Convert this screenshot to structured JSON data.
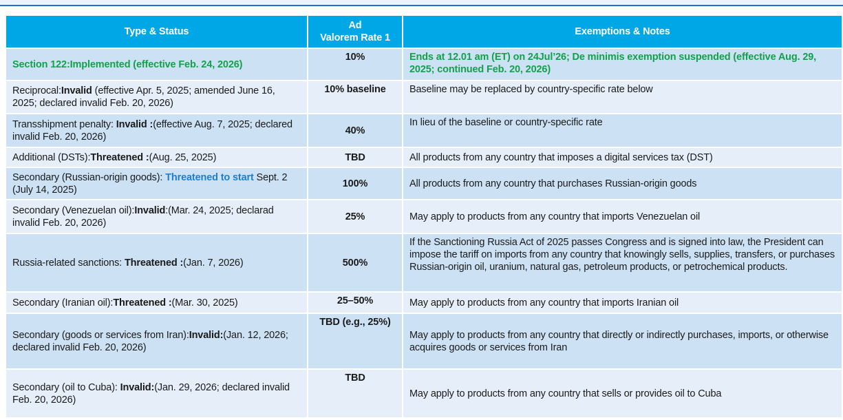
{
  "colors": {
    "header_bg": "#00a7e6",
    "row_dark": "#cde1f4",
    "row_light": "#e6eff9",
    "implemented_green": "#12a14a",
    "threat_blue": "#1a7fd0",
    "title_rule": "#1f6fd6"
  },
  "table": {
    "headers": [
      "Type & Status",
      "Ad Valorem Rate 1",
      "Exemptions & Notes"
    ],
    "header_rate_lines": [
      "Ad",
      "Valorem Rate 1"
    ],
    "rows": [
      {
        "type": [
          {
            "t": "Section 122:Implemented (effective Feb. 24, 2026)",
            "s": "green"
          }
        ],
        "rate": "10%",
        "notes": [
          {
            "t": "Ends at 12.01 am (ET) on 24Jul’26; De minimis exemption suspended (effective Aug. 29, 2025; continued Feb. 20, 2026)",
            "s": "green"
          }
        ]
      },
      {
        "type": [
          {
            "t": "Reciprocal:",
            "s": ""
          },
          {
            "t": "Invalid",
            "s": "b"
          },
          {
            "t": " (effective Apr. 5, 2025; amended June 16, 2025; declared invalid Feb. 20, 2026)",
            "s": ""
          }
        ],
        "rate": "10% baseline",
        "notes": [
          {
            "t": "Baseline may be replaced by country-specific rate below",
            "s": ""
          }
        ]
      },
      {
        "type": [
          {
            "t": "Transshipment penalty: ",
            "s": ""
          },
          {
            "t": "Invalid :",
            "s": "b"
          },
          {
            "t": "(effective Aug. 7, 2025; declared invalid Feb. 20, 2026)",
            "s": ""
          }
        ],
        "rate": "40%",
        "notes": [
          {
            "t": "In lieu of the baseline or country-specific rate",
            "s": ""
          }
        ]
      },
      {
        "type": [
          {
            "t": "Additional (DSTs):",
            "s": ""
          },
          {
            "t": "Threatened :",
            "s": "b"
          },
          {
            "t": "(Aug. 25, 2025)",
            "s": ""
          }
        ],
        "rate": "TBD",
        "notes": [
          {
            "t": "All products from any country that imposes a digital services tax (DST)",
            "s": ""
          }
        ]
      },
      {
        "type": [
          {
            "t": "Secondary (Russian-origin goods): ",
            "s": ""
          },
          {
            "t": "Threatened to start",
            "s": "blue"
          },
          {
            "t": " Sept. 2 (July 14, 2025)",
            "s": ""
          }
        ],
        "rate": "100%",
        "notes": [
          {
            "t": "All products from any country that purchases Russian-origin goods",
            "s": ""
          }
        ]
      },
      {
        "type": [
          {
            "t": "Secondary (Venezuelan oil):",
            "s": ""
          },
          {
            "t": "Invalid",
            "s": "b"
          },
          {
            "t": ":(Mar. 24, 2025; declarad invalid Feb. 20, 2026)",
            "s": ""
          }
        ],
        "rate": "25%",
        "notes": [
          {
            "t": "May apply to products from any country that imports Venezuelan oil",
            "s": ""
          }
        ]
      },
      {
        "type": [
          {
            "t": "Russia-related sanctions: ",
            "s": ""
          },
          {
            "t": "Threatened :",
            "s": "b"
          },
          {
            "t": "(Jan. 7, 2026)",
            "s": ""
          }
        ],
        "rate": "500%",
        "notes": [
          {
            "t": "If the Sanctioning Russia Act of 2025 passes Congress and is signed into law, the President can impose the tariff on imports from any country that knowingly sells, supplies, transfers, or purchases Russian-origin oil, uranium, natural gas, petroleum products, or petrochemical products.",
            "s": ""
          }
        ]
      },
      {
        "type": [
          {
            "t": "Secondary (Iranian oil):",
            "s": ""
          },
          {
            "t": "Threatened :",
            "s": "b"
          },
          {
            "t": "(Mar. 30, 2025)",
            "s": ""
          }
        ],
        "rate": "25–50%",
        "notes": [
          {
            "t": "May apply to products from any country that imports Iranian oil",
            "s": ""
          }
        ]
      },
      {
        "type": [
          {
            "t": "Secondary (goods or services from Iran):",
            "s": ""
          },
          {
            "t": "Invalid:",
            "s": "b"
          },
          {
            "t": "(Jan. 12, 2026; declared invalid Feb. 20, 2026)",
            "s": ""
          }
        ],
        "rate": "TBD (e.g., 25%)",
        "notes": [
          {
            "t": "May apply to products from any country that directly or indirectly purchases, imports, or otherwise acquires goods or services from Iran",
            "s": ""
          }
        ]
      },
      {
        "type": [
          {
            "t": "Secondary (oil to Cuba): ",
            "s": ""
          },
          {
            "t": "Invalid:",
            "s": "b"
          },
          {
            "t": "(Jan. 29, 2026; declared invalid Feb. 20, 2026)",
            "s": ""
          }
        ],
        "rate": "TBD",
        "notes": [
          {
            "t": "May apply to products from any country that sells or provides oil to Cuba",
            "s": ""
          }
        ]
      }
    ]
  }
}
